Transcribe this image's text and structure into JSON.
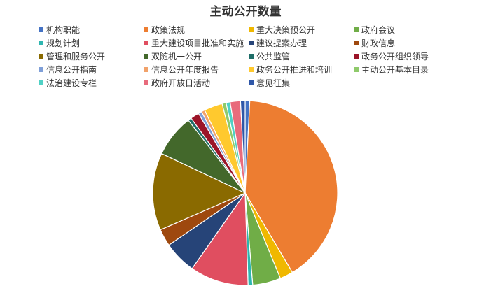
{
  "chart_data": {
    "type": "pie",
    "title": "主动公开数量",
    "legend_position": "top",
    "start_angle": "12 o'clock, clockwise",
    "unit": "percent (estimated)",
    "categories": [
      "机构职能",
      "政策法规",
      "重大决策预公开",
      "政府会议",
      "规划计划",
      "重大建设项目批准和实施",
      "建议提案办理",
      "财政信息",
      "管理和服务公开",
      "双随机一公开",
      "公共监管",
      "政务公开组织领导",
      "信息公开指南",
      "信息公开年度报告",
      "政务公开推进和培训",
      "主动公开基本目录",
      "法治建设专栏",
      "政府开放日活动",
      "意见征集"
    ],
    "values": [
      0.8,
      40.5,
      2.3,
      4.9,
      0.8,
      10.2,
      5.7,
      3.0,
      13.5,
      7.4,
      0.6,
      1.5,
      0.6,
      0.6,
      3.2,
      0.7,
      0.7,
      1.8,
      0.8
    ],
    "colors": [
      "#4472c4",
      "#ed7d31",
      "#f0b800",
      "#70ad47",
      "#2eb6b0",
      "#e04e60",
      "#264478",
      "#9e480e",
      "#8a6a00",
      "#43682b",
      "#1e6e68",
      "#9b1428",
      "#7f9fd8",
      "#f1a26a",
      "#ffc92e",
      "#8fca6b",
      "#4fd1c5",
      "#e86b7c",
      "#2f57a8"
    ]
  }
}
